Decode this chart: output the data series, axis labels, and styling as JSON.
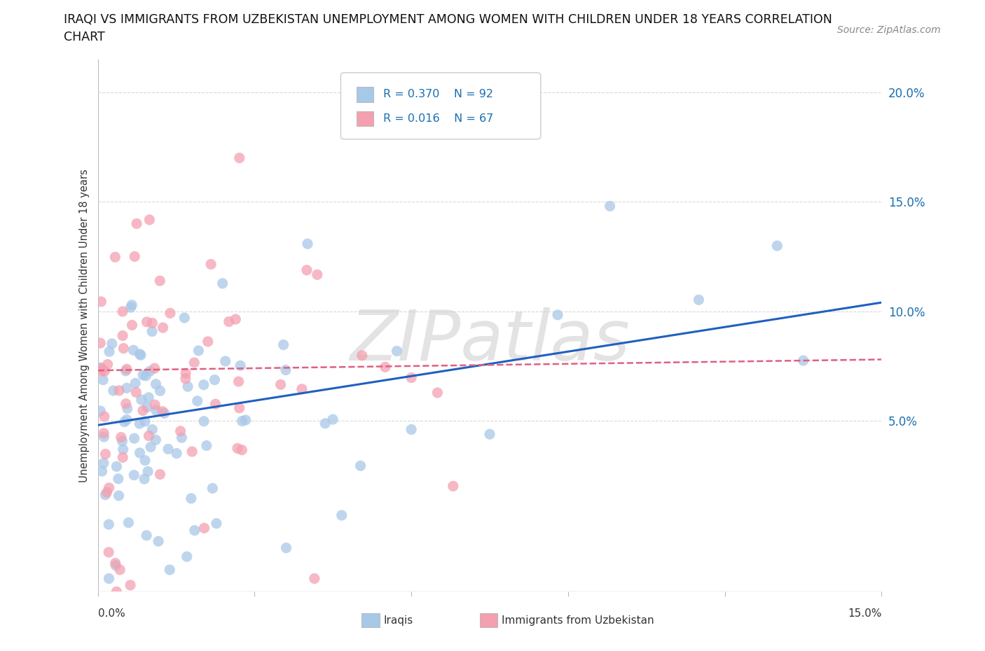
{
  "title_line1": "IRAQI VS IMMIGRANTS FROM UZBEKISTAN UNEMPLOYMENT AMONG WOMEN WITH CHILDREN UNDER 18 YEARS CORRELATION",
  "title_line2": "CHART",
  "source": "Source: ZipAtlas.com",
  "ylabel": "Unemployment Among Women with Children Under 18 years",
  "y_ticks": [
    0.05,
    0.1,
    0.15,
    0.2
  ],
  "y_tick_labels": [
    "5.0%",
    "10.0%",
    "15.0%",
    "20.0%"
  ],
  "x_min": 0.0,
  "x_max": 0.15,
  "y_min": -0.028,
  "y_max": 0.215,
  "R_iraqis": 0.37,
  "N_iraqis": 92,
  "R_uzbek": 0.016,
  "N_uzbek": 67,
  "color_iraqis": "#a8c8e8",
  "color_uzbek": "#f4a0b0",
  "color_line_iraqis": "#2060c0",
  "color_line_uzbek": "#e06080",
  "legend_label_iraqis": "Iraqis",
  "legend_label_uzbek": "Immigrants from Uzbekistan",
  "watermark": "ZIPatlas",
  "background_color": "#ffffff",
  "grid_color": "#d8d8d8",
  "line_iraqis_start_y": 0.048,
  "line_iraqis_end_y": 0.104,
  "line_uzbek_start_y": 0.073,
  "line_uzbek_end_y": 0.078
}
